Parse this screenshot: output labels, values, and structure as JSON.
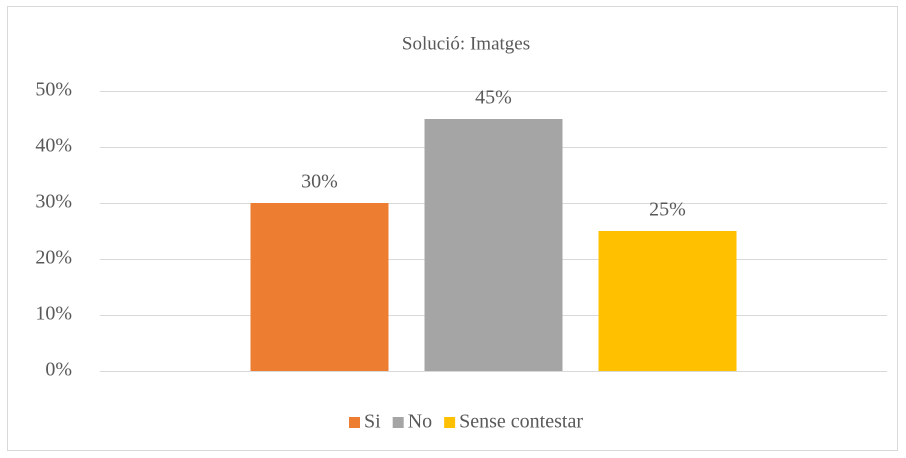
{
  "chart_data": {
    "type": "bar",
    "title": "Solució: Imatges",
    "categories": [
      null
    ],
    "series": [
      {
        "name": "Si",
        "color": "#ED7D31",
        "values": [
          30
        ],
        "value_labels": [
          "30%"
        ]
      },
      {
        "name": "No",
        "color": "#A5A5A5",
        "values": [
          45
        ],
        "value_labels": [
          "45%"
        ]
      },
      {
        "name": "Sense contestar",
        "color": "#FFC000",
        "values": [
          25
        ],
        "value_labels": [
          "25%"
        ]
      }
    ],
    "ylim": [
      0,
      50
    ],
    "yticks": [
      {
        "value": 0,
        "label": "0%"
      },
      {
        "value": 10,
        "label": "10%"
      },
      {
        "value": 20,
        "label": "20%"
      },
      {
        "value": 30,
        "label": "30%"
      },
      {
        "value": 40,
        "label": "40%"
      },
      {
        "value": 50,
        "label": "50%"
      }
    ],
    "grid": true,
    "legend": "bottom"
  }
}
